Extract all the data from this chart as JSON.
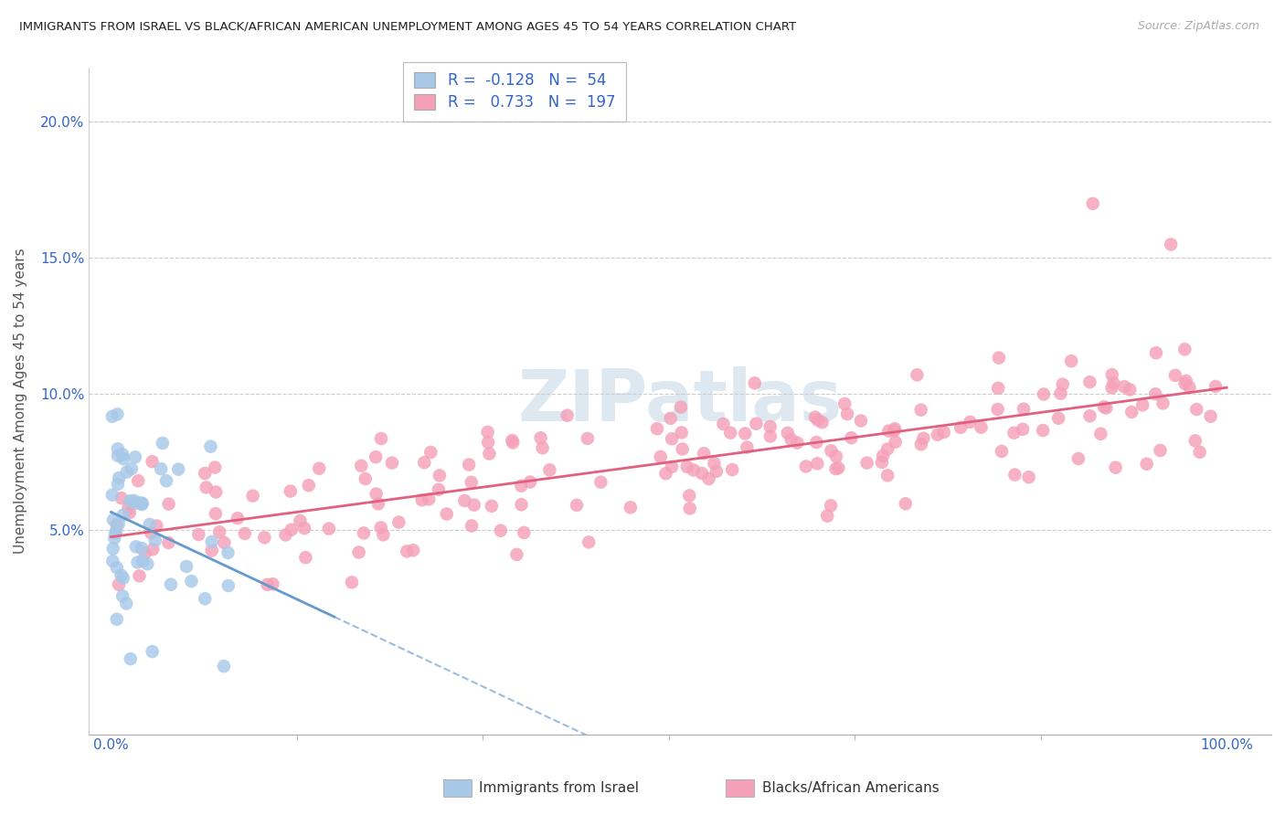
{
  "title": "IMMIGRANTS FROM ISRAEL VS BLACK/AFRICAN AMERICAN UNEMPLOYMENT AMONG AGES 45 TO 54 YEARS CORRELATION CHART",
  "source": "Source: ZipAtlas.com",
  "ylabel": "Unemployment Among Ages 45 to 54 years",
  "color_israel": "#a8c8e8",
  "color_black": "#f4a0b8",
  "color_israel_line": "#6699cc",
  "color_black_line": "#e06080",
  "color_legend_text": "#3366cc",
  "watermark_color": "#dde8f0",
  "r_israel": -0.128,
  "n_israel": 54,
  "r_black": 0.733,
  "n_black": 197
}
